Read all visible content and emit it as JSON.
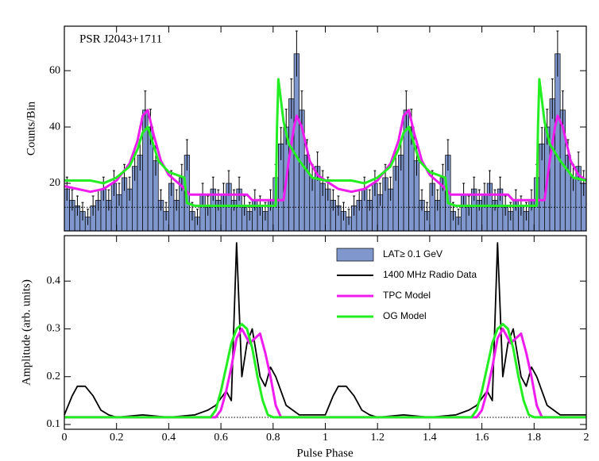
{
  "chart_data": [
    {
      "type": "histogram",
      "annotation": "PSR J2043+1711",
      "ylabel": "Counts/Bin",
      "xlim": [
        0,
        2
      ],
      "ylim": [
        3.1,
        75.8
      ],
      "xticks": [
        0,
        0.2,
        0.4,
        0.6,
        0.8,
        1,
        1.2,
        1.4,
        1.6,
        1.8,
        2
      ],
      "yticks": [
        20,
        40,
        60
      ],
      "background": 11.5,
      "histogram": {
        "name": "LAT≥ 0.1 GeV",
        "color": "#7f97cc",
        "bins": [
          0,
          0.02,
          0.04,
          0.06,
          0.08,
          0.1,
          0.12,
          0.14,
          0.16,
          0.18,
          0.2,
          0.22,
          0.24,
          0.26,
          0.28,
          0.3,
          0.32,
          0.34,
          0.36,
          0.38,
          0.4,
          0.42,
          0.44,
          0.46,
          0.48,
          0.5,
          0.52,
          0.54,
          0.56,
          0.58,
          0.6,
          0.62,
          0.64,
          0.66,
          0.68,
          0.7,
          0.72,
          0.74,
          0.76,
          0.78,
          0.8,
          0.82,
          0.84,
          0.86,
          0.88,
          0.9,
          0.92,
          0.94,
          0.96,
          0.98,
          1,
          1.02,
          1.04,
          1.06,
          1.08,
          1.1,
          1.12,
          1.14,
          1.16,
          1.18,
          1.2,
          1.22,
          1.24,
          1.26,
          1.28,
          1.3,
          1.32,
          1.34,
          1.36,
          1.38,
          1.4,
          1.42,
          1.44,
          1.46,
          1.48,
          1.5,
          1.52,
          1.54,
          1.56,
          1.58,
          1.6,
          1.62,
          1.64,
          1.66,
          1.68,
          1.7,
          1.72,
          1.74,
          1.76,
          1.78,
          1.8,
          1.82,
          1.84,
          1.86,
          1.88,
          1.9,
          1.92,
          1.94,
          1.96,
          1.98,
          2
        ],
        "values": [
          18,
          14,
          12,
          10,
          8,
          12,
          14,
          18,
          14,
          20,
          16,
          22,
          18,
          26,
          30,
          46,
          40,
          28,
          14,
          10,
          20,
          14,
          22,
          30,
          10,
          8,
          16,
          12,
          18,
          14,
          16,
          20,
          14,
          18,
          12,
          10,
          14,
          12,
          10,
          14,
          22,
          34,
          40,
          50,
          66,
          46,
          30,
          22,
          26,
          20,
          18,
          14,
          12,
          10,
          8,
          12,
          14,
          18,
          14,
          20,
          16,
          22,
          18,
          26,
          30,
          46,
          40,
          28,
          14,
          10,
          20,
          14,
          22,
          30,
          10,
          8,
          16,
          12,
          18,
          14,
          16,
          20,
          14,
          18,
          12,
          10,
          14,
          12,
          10,
          14,
          22,
          34,
          40,
          50,
          66,
          46,
          30,
          22,
          26,
          20
        ],
        "errors": [
          4.2,
          3.7,
          3.5,
          3.2,
          2.8,
          3.5,
          3.7,
          4.2,
          3.7,
          4.5,
          4,
          4.7,
          4.2,
          5.1,
          5.5,
          6.8,
          6.3,
          5.3,
          3.7,
          3.2,
          4.5,
          3.7,
          4.7,
          5.5,
          3.2,
          2.8,
          4,
          3.5,
          4.2,
          3.7,
          4,
          4.5,
          3.7,
          4.2,
          3.5,
          3.2,
          3.7,
          3.5,
          3.2,
          3.7,
          4.7,
          5.8,
          6.3,
          7.1,
          8.1,
          6.8,
          5.5,
          4.7,
          5.1,
          4.5,
          4.2,
          3.7,
          3.5,
          3.2,
          2.8,
          3.5,
          3.7,
          4.2,
          3.7,
          4.5,
          4,
          4.7,
          4.2,
          5.1,
          5.5,
          6.8,
          6.3,
          5.3,
          3.7,
          3.2,
          4.5,
          3.7,
          4.7,
          5.5,
          3.2,
          2.8,
          4,
          3.5,
          4.2,
          3.7,
          4,
          4.5,
          3.7,
          4.2,
          3.5,
          3.2,
          3.7,
          3.5,
          3.2,
          3.7,
          4.7,
          5.8,
          6.3,
          7.1,
          8.1,
          6.8,
          5.5,
          4.7,
          5.1,
          4.5
        ]
      },
      "series": [
        {
          "color": "#ee1cee",
          "x": [
            0,
            0.05,
            0.1,
            0.15,
            0.2,
            0.25,
            0.28,
            0.3,
            0.32,
            0.34,
            0.37,
            0.4,
            0.45,
            0.48,
            0.55,
            0.65,
            0.7,
            0.72,
            0.8,
            0.84,
            0.86,
            0.88,
            0.89,
            0.91,
            0.94,
            0.97,
            1,
            1.05,
            1.1,
            1.15,
            1.2,
            1.25,
            1.28,
            1.3,
            1.32,
            1.34,
            1.37,
            1.4,
            1.45,
            1.48,
            1.55,
            1.65,
            1.7,
            1.72,
            1.8,
            1.84,
            1.86,
            1.88,
            1.89,
            1.91,
            1.94,
            1.97,
            2
          ],
          "values": [
            19,
            18,
            17,
            18,
            21,
            27,
            35,
            44,
            46,
            38,
            28,
            23,
            19,
            16,
            16,
            16,
            16,
            14,
            14,
            14,
            28,
            40,
            44,
            40,
            28,
            23,
            21,
            18,
            17,
            18,
            21,
            27,
            35,
            44,
            46,
            38,
            28,
            23,
            19,
            16,
            16,
            16,
            16,
            14,
            14,
            14,
            28,
            40,
            44,
            40,
            28,
            23,
            21
          ]
        },
        {
          "color": "#22ee22",
          "x": [
            0,
            0.1,
            0.15,
            0.2,
            0.25,
            0.28,
            0.3,
            0.32,
            0.34,
            0.36,
            0.4,
            0.46,
            0.47,
            0.5,
            0.81,
            0.815,
            0.82,
            0.84,
            0.86,
            0.9,
            0.95,
            1,
            1.1,
            1.15,
            1.2,
            1.25,
            1.28,
            1.3,
            1.32,
            1.34,
            1.36,
            1.4,
            1.46,
            1.47,
            1.5,
            1.81,
            1.815,
            1.82,
            1.84,
            1.86,
            1.9,
            1.95,
            2
          ],
          "values": [
            21,
            21,
            20,
            22,
            26,
            32,
            38,
            40,
            34,
            28,
            24,
            22,
            13,
            12,
            12,
            40,
            57,
            42,
            34,
            28,
            22,
            21,
            21,
            20,
            22,
            26,
            32,
            38,
            40,
            34,
            28,
            24,
            22,
            13,
            12,
            12,
            40,
            57,
            42,
            34,
            28,
            22,
            21
          ]
        }
      ]
    },
    {
      "type": "line",
      "xlabel": "Pulse Phase",
      "ylabel": "Amplitude (arb. units)",
      "xlim": [
        0,
        2
      ],
      "ylim": [
        0.09,
        0.495
      ],
      "xticks": [
        0,
        0.2,
        0.4,
        0.6,
        0.8,
        1,
        1.2,
        1.4,
        1.6,
        1.8,
        2
      ],
      "yticks": [
        0.1,
        0.2,
        0.3,
        0.4
      ],
      "background": 0.115,
      "legend": "upper right",
      "series": [
        {
          "name": "1400 MHz Radio Data",
          "color": "#000000",
          "x": [
            0,
            0.03,
            0.05,
            0.08,
            0.11,
            0.14,
            0.17,
            0.2,
            0.3,
            0.4,
            0.5,
            0.55,
            0.58,
            0.62,
            0.64,
            0.66,
            0.68,
            0.7,
            0.72,
            0.75,
            0.77,
            0.79,
            0.81,
            0.85,
            0.9,
            1,
            1.03,
            1.05,
            1.08,
            1.11,
            1.14,
            1.17,
            1.2,
            1.3,
            1.4,
            1.5,
            1.55,
            1.58,
            1.62,
            1.64,
            1.66,
            1.68,
            1.7,
            1.72,
            1.75,
            1.77,
            1.79,
            1.81,
            1.85,
            1.9,
            2
          ],
          "values": [
            0.12,
            0.16,
            0.18,
            0.18,
            0.16,
            0.13,
            0.12,
            0.115,
            0.12,
            0.115,
            0.12,
            0.13,
            0.14,
            0.17,
            0.15,
            0.48,
            0.2,
            0.27,
            0.3,
            0.2,
            0.18,
            0.22,
            0.2,
            0.14,
            0.12,
            0.12,
            0.16,
            0.18,
            0.18,
            0.16,
            0.13,
            0.12,
            0.115,
            0.12,
            0.115,
            0.12,
            0.13,
            0.14,
            0.17,
            0.15,
            0.48,
            0.2,
            0.27,
            0.3,
            0.2,
            0.18,
            0.22,
            0.2,
            0.14,
            0.12,
            0.12
          ]
        },
        {
          "name": "TPC Model",
          "color": "#ee1cee",
          "x": [
            0,
            0.58,
            0.6,
            0.62,
            0.64,
            0.66,
            0.68,
            0.7,
            0.71,
            0.73,
            0.75,
            0.77,
            0.79,
            0.81,
            0.83,
            1,
            1.58,
            1.6,
            1.62,
            1.64,
            1.66,
            1.68,
            1.7,
            1.71,
            1.73,
            1.75,
            1.77,
            1.79,
            1.81,
            1.83,
            2
          ],
          "values": [
            0.115,
            0.115,
            0.13,
            0.17,
            0.22,
            0.28,
            0.3,
            0.28,
            0.27,
            0.28,
            0.29,
            0.25,
            0.2,
            0.14,
            0.115,
            0.115,
            0.115,
            0.13,
            0.17,
            0.22,
            0.28,
            0.3,
            0.28,
            0.27,
            0.28,
            0.29,
            0.25,
            0.2,
            0.14,
            0.115,
            0.115
          ]
        },
        {
          "name": "OG Model",
          "color": "#22ee22",
          "x": [
            0,
            0.56,
            0.58,
            0.6,
            0.62,
            0.64,
            0.66,
            0.68,
            0.7,
            0.72,
            0.74,
            0.76,
            0.78,
            0.8,
            1,
            1.56,
            1.58,
            1.6,
            1.62,
            1.64,
            1.66,
            1.68,
            1.7,
            1.72,
            1.74,
            1.76,
            1.78,
            1.8,
            2
          ],
          "values": [
            0.115,
            0.115,
            0.13,
            0.17,
            0.22,
            0.27,
            0.3,
            0.31,
            0.3,
            0.26,
            0.2,
            0.15,
            0.12,
            0.115,
            0.115,
            0.115,
            0.13,
            0.17,
            0.22,
            0.27,
            0.3,
            0.31,
            0.3,
            0.26,
            0.2,
            0.15,
            0.12,
            0.115,
            0.115
          ]
        }
      ]
    }
  ]
}
